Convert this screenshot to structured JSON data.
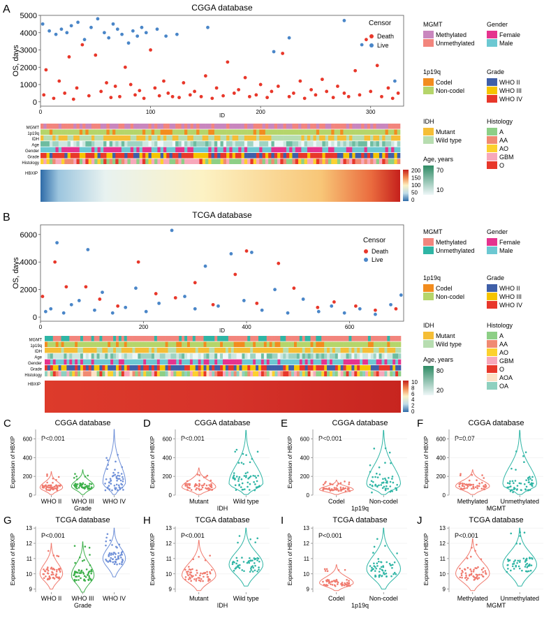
{
  "colors": {
    "death": "#E8372A",
    "live": "#4A86C8",
    "methylated": "#C986BE",
    "unmethylated": "#F2857D",
    "tcga_methylated": "#F2857D",
    "tcga_unmethylated": "#2FB5A5",
    "codel": "#F28C1E",
    "noncodel": "#B5D56A",
    "mutant": "#F5BE36",
    "wildtype": "#B7DDB0",
    "female": "#E5338E",
    "male": "#6CC8D2",
    "who2": "#3F5FA8",
    "who3": "#F5C400",
    "who4": "#E8372A",
    "hist_A": "#8DCF86",
    "hist_AA": "#F08A72",
    "hist_AO": "#FCD12E",
    "hist_GBM": "#F7A8BB",
    "hist_O": "#E8372A",
    "hist_AOA": "#FCE2C7",
    "hist_OA": "#8ED0BF",
    "violin_red": "#F07A6E",
    "violin_green": "#3DB04A",
    "violin_blue": "#6F90D8",
    "violin_teal": "#2FB5A5"
  },
  "panelA": {
    "label": "A",
    "title": "CGGA database",
    "ylabel": "OS, days",
    "xlabel": "ID",
    "legend_title": "Censor",
    "legend_death": "Death",
    "legend_live": "Live"
  },
  "panelB": {
    "label": "B",
    "title": "TCGA database",
    "ylabel": "OS, days",
    "xlabel": "ID",
    "legend_title": "Censor",
    "legend_death": "Death",
    "legend_live": "Live"
  },
  "track_labels": [
    "MGMT",
    "1p19q",
    "IDH",
    "Age",
    "Gender",
    "Grade",
    "Histology"
  ],
  "hbxip_label": "HBXIP",
  "legendsA": {
    "mgmt_title": "MGMT",
    "mgmt_items": [
      "Methylated",
      "Unmethylated"
    ],
    "gender_title": "Gender",
    "gender_items": [
      "Female",
      "Male"
    ],
    "p19q_title": "1p19q",
    "p19q_items": [
      "Codel",
      "Non-codel"
    ],
    "grade_title": "Grade",
    "grade_items": [
      "WHO II",
      "WHO III",
      "WHO IV"
    ],
    "idh_title": "IDH",
    "idh_items": [
      "Mutant",
      "Wild type"
    ],
    "hist_title": "Histology",
    "hist_items": [
      "A",
      "AA",
      "AO",
      "GBM",
      "O"
    ],
    "age_title": "Age, years",
    "age_ticks": [
      "70",
      "10"
    ],
    "hbxip_scale": [
      "200",
      "150",
      "100",
      "50",
      "0"
    ]
  },
  "legendsB": {
    "mgmt_title": "MGMT",
    "mgmt_items": [
      "Methylated",
      "Unmethylated"
    ],
    "gender_title": "Gender",
    "gender_items": [
      "Female",
      "Male"
    ],
    "p19q_title": "1p19q",
    "p19q_items": [
      "Codel",
      "Non-codel"
    ],
    "grade_title": "Grade",
    "grade_items": [
      "WHO II",
      "WHO III",
      "WHO IV"
    ],
    "idh_title": "IDH",
    "idh_items": [
      "Mutant",
      "Wild type"
    ],
    "hist_title": "Histology",
    "hist_items": [
      "A",
      "AA",
      "AO",
      "GBM",
      "O",
      "AOA",
      "OA"
    ],
    "age_title": "Age, years",
    "age_ticks": [
      "80",
      "20"
    ],
    "hbxip_scale": [
      "10",
      "8",
      "6",
      "4",
      "2",
      "0"
    ]
  },
  "violin_ylabel": "Expression of HBXIP",
  "chart_data": [
    {
      "id": "A",
      "type": "scatter",
      "title": "CGGA database",
      "xlabel": "ID",
      "ylabel": "OS, days",
      "xlim": [
        0,
        330
      ],
      "ylim": [
        -250,
        5000
      ],
      "xticks": [
        0,
        100,
        200,
        300
      ],
      "yticks": [
        0,
        1000,
        2000,
        3000,
        4000,
        5000
      ],
      "series": [
        {
          "name": "Death",
          "x": [
            3,
            5,
            12,
            17,
            22,
            26,
            30,
            33,
            38,
            44,
            50,
            55,
            60,
            64,
            68,
            72,
            77,
            82,
            86,
            90,
            94,
            100,
            104,
            108,
            112,
            116,
            120,
            126,
            130,
            136,
            140,
            146,
            150,
            156,
            160,
            166,
            170,
            176,
            180,
            186,
            190,
            196,
            200,
            206,
            210,
            216,
            220,
            226,
            230,
            236,
            240,
            246,
            250,
            256,
            260,
            266,
            270,
            276,
            280,
            286,
            290,
            296,
            300,
            306,
            310,
            316,
            320,
            325
          ],
          "y": [
            400,
            1850,
            200,
            1200,
            500,
            2600,
            150,
            800,
            3300,
            350,
            2700,
            600,
            1100,
            250,
            900,
            300,
            2000,
            1000,
            400,
            650,
            200,
            3000,
            800,
            350,
            1200,
            500,
            300,
            250,
            1100,
            400,
            600,
            300,
            1500,
            200,
            800,
            350,
            2300,
            500,
            700,
            1400,
            300,
            400,
            1000,
            250,
            600,
            900,
            2800,
            300,
            500,
            1200,
            200,
            700,
            400,
            1300,
            600,
            250,
            900,
            500,
            300,
            1800,
            400,
            3600,
            600,
            2100,
            300,
            800,
            200,
            500
          ]
        },
        {
          "name": "Live",
          "x": [
            2,
            8,
            14,
            19,
            24,
            28,
            34,
            40,
            46,
            52,
            58,
            62,
            66,
            70,
            74,
            80,
            84,
            88,
            92,
            96,
            106,
            114,
            124,
            152,
            212,
            226,
            276,
            292,
            322
          ],
          "y": [
            4500,
            4100,
            3900,
            4200,
            4000,
            4400,
            4600,
            3600,
            4300,
            4800,
            4000,
            3700,
            4500,
            4200,
            3900,
            3400,
            4100,
            3800,
            4300,
            4000,
            4200,
            3800,
            3900,
            4300,
            2900,
            3700,
            4700,
            3300,
            1200
          ]
        }
      ]
    },
    {
      "id": "B",
      "type": "scatter",
      "title": "TCGA database",
      "xlabel": "ID",
      "ylabel": "OS, days",
      "xlim": [
        0,
        705
      ],
      "ylim": [
        -300,
        6700
      ],
      "xticks": [
        0,
        200,
        400,
        600
      ],
      "yticks": [
        0,
        2000,
        4000,
        6000
      ],
      "series": [
        {
          "name": "Death",
          "x": [
            4,
            28,
            50,
            88,
            115,
            150,
            190,
            224,
            262,
            300,
            335,
            378,
            400,
            420,
            462,
            492,
            538,
            570,
            612,
            650,
            690
          ],
          "y": [
            1500,
            4000,
            2200,
            2200,
            1300,
            800,
            4000,
            1700,
            1400,
            2500,
            900,
            3100,
            4800,
            1000,
            3900,
            2100,
            700,
            1100,
            800,
            500,
            600
          ]
        },
        {
          "name": "Live",
          "x": [
            10,
            20,
            32,
            45,
            60,
            75,
            92,
            105,
            120,
            140,
            165,
            185,
            205,
            230,
            255,
            280,
            300,
            320,
            345,
            370,
            395,
            410,
            430,
            455,
            480,
            510,
            540,
            565,
            590,
            620,
            650,
            680,
            700
          ],
          "y": [
            400,
            600,
            5400,
            300,
            900,
            1200,
            4900,
            500,
            1800,
            300,
            700,
            2100,
            400,
            1000,
            6300,
            1500,
            600,
            3700,
            800,
            4600,
            1200,
            4700,
            500,
            2000,
            300,
            1300,
            400,
            800,
            300,
            600,
            200,
            900,
            1600
          ]
        }
      ]
    },
    {
      "id": "C",
      "type": "violin",
      "title": "CGGA database",
      "annotation": "P<0.001",
      "xlabel": "Grade",
      "ylabel": "Expression of HBXIP",
      "categories": [
        "WHO II",
        "WHO III",
        "WHO IV"
      ],
      "medians": [
        80,
        95,
        130
      ],
      "maxima": [
        250,
        270,
        700
      ],
      "ylim": [
        0,
        700
      ],
      "yticks": [
        0,
        200,
        400,
        600
      ]
    },
    {
      "id": "D",
      "type": "violin",
      "title": "CGGA database",
      "annotation": "P<0.001",
      "xlabel": "IDH",
      "ylabel": "Expression of HBXIP",
      "categories": [
        "Mutant",
        "Wild type"
      ],
      "medians": [
        85,
        125
      ],
      "maxima": [
        290,
        690
      ],
      "ylim": [
        0,
        700
      ],
      "yticks": [
        0,
        200,
        400,
        600
      ]
    },
    {
      "id": "E",
      "type": "violin",
      "title": "CGGA database",
      "annotation": "P<0.001",
      "xlabel": "1p19q",
      "ylabel": "Expression of HBXIP",
      "categories": [
        "Codel",
        "Non-codel"
      ],
      "medians": [
        60,
        110
      ],
      "maxima": [
        160,
        690
      ],
      "ylim": [
        0,
        700
      ],
      "yticks": [
        0,
        200,
        400,
        600
      ]
    },
    {
      "id": "F",
      "type": "violin",
      "title": "CGGA database",
      "annotation": "P=0.07",
      "xlabel": "MGMT",
      "ylabel": "Expression of HBXIP",
      "categories": [
        "Methylated",
        "Unmethylated"
      ],
      "medians": [
        95,
        110
      ],
      "maxima": [
        270,
        690
      ],
      "ylim": [
        0,
        700
      ],
      "yticks": [
        0,
        200,
        400,
        600
      ]
    },
    {
      "id": "G",
      "type": "violin",
      "title": "TCGA database",
      "annotation": "P<0.001",
      "xlabel": "Grade",
      "ylabel": "Expression of HBXIP",
      "categories": [
        "WHO II",
        "WHO III",
        "WHO IV"
      ],
      "medians": [
        10.0,
        9.9,
        11.0
      ],
      "minima": [
        9.0,
        8.8,
        9.8
      ],
      "maxima": [
        12.0,
        12.1,
        13.0
      ],
      "ylim": [
        8.8,
        13.1
      ],
      "yticks": [
        9,
        10,
        11,
        12,
        13
      ]
    },
    {
      "id": "H",
      "type": "violin",
      "title": "TCGA database",
      "annotation": "P<0.001",
      "xlabel": "IDH",
      "ylabel": "Expression of HBXIP",
      "categories": [
        "Mutant",
        "Wild type"
      ],
      "medians": [
        9.9,
        10.6
      ],
      "minima": [
        8.9,
        9.2
      ],
      "maxima": [
        12.2,
        13.0
      ],
      "ylim": [
        8.8,
        13.1
      ],
      "yticks": [
        9,
        10,
        11,
        12,
        13
      ]
    },
    {
      "id": "I",
      "type": "violin",
      "title": "TCGA database",
      "annotation": "P<0.001",
      "xlabel": "1p19q",
      "ylabel": "Expression of HBXIP",
      "categories": [
        "Codel",
        "Non-codel"
      ],
      "medians": [
        9.4,
        10.3
      ],
      "minima": [
        8.9,
        9.0
      ],
      "maxima": [
        10.6,
        13.0
      ],
      "ylim": [
        8.8,
        13.1
      ],
      "yticks": [
        9,
        10,
        11,
        12,
        13
      ]
    },
    {
      "id": "J",
      "type": "violin",
      "title": "TCGA database",
      "annotation": "P<0.001",
      "xlabel": "MGMT",
      "ylabel": "Expression of HBXIP",
      "categories": [
        "Methylated",
        "Unmethylated"
      ],
      "medians": [
        10.0,
        10.6
      ],
      "minima": [
        8.9,
        9.2
      ],
      "maxima": [
        12.3,
        13.0
      ],
      "ylim": [
        8.8,
        13.1
      ],
      "yticks": [
        9,
        10,
        11,
        12,
        13
      ]
    }
  ]
}
